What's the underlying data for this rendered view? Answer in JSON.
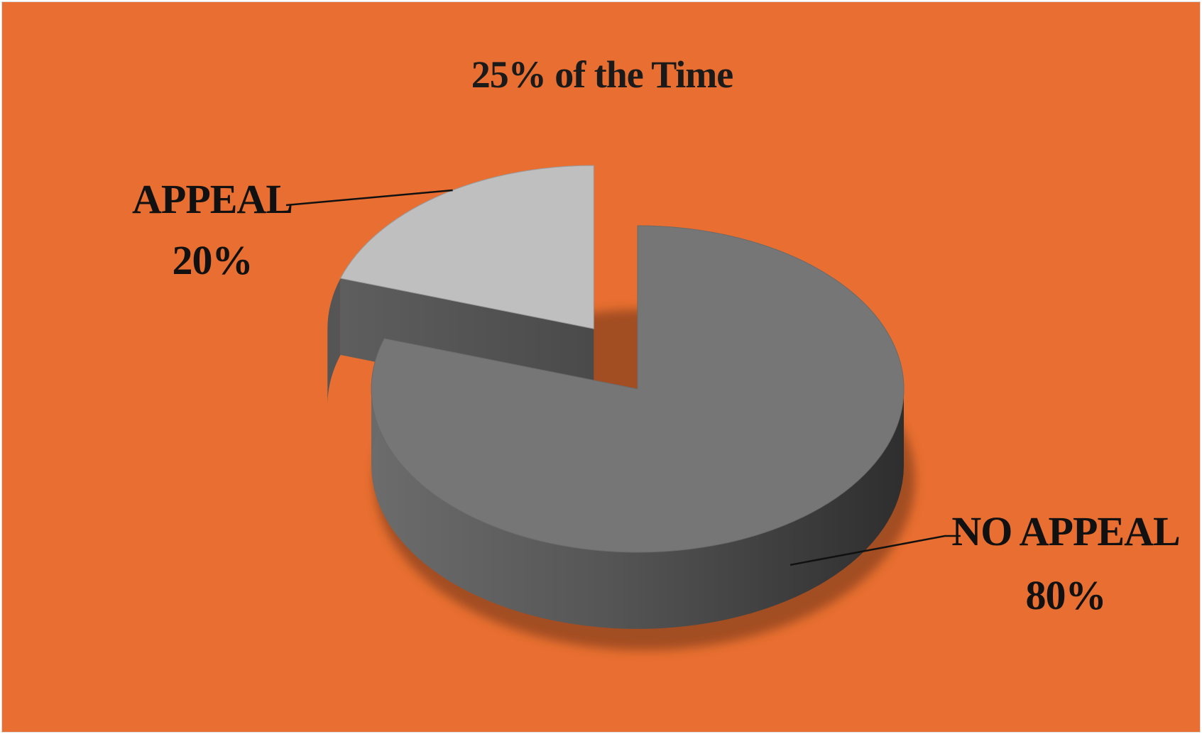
{
  "chart_data": {
    "type": "pie",
    "title": "25% of the Time",
    "slices": [
      {
        "label": "APPEAL",
        "value": 20,
        "value_label": "20%",
        "exploded": true,
        "color": "#bfbfbf"
      },
      {
        "label": "NO APPEAL",
        "value": 80,
        "value_label": "80%",
        "exploded": false,
        "color": "#767676"
      }
    ],
    "style": "3d",
    "background_color": "#e86f31",
    "legend": "none"
  }
}
